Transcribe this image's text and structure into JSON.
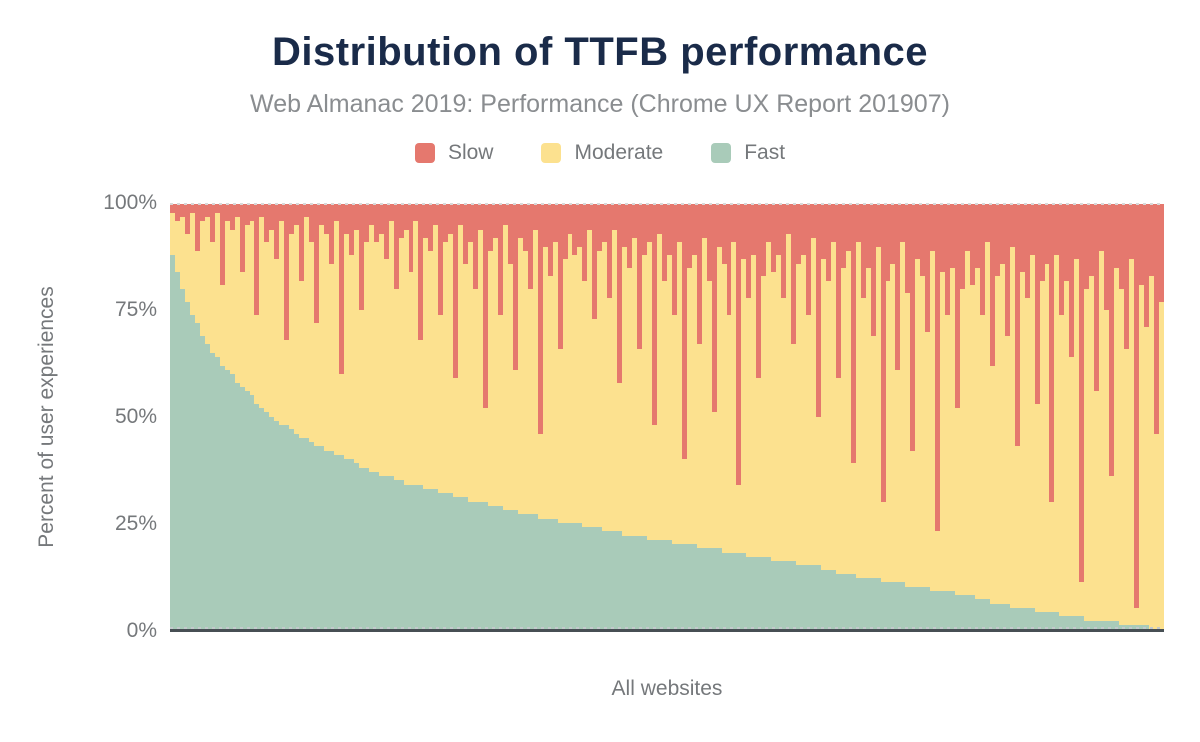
{
  "header": {
    "title": "Distribution of TTFB performance",
    "subtitle": "Web Almanac 2019: Performance (Chrome UX Report 201907)"
  },
  "legend": {
    "items": [
      {
        "label": "Slow",
        "color": "#e5786e"
      },
      {
        "label": "Moderate",
        "color": "#fce18f"
      },
      {
        "label": "Fast",
        "color": "#a9cbb9"
      }
    ]
  },
  "axes": {
    "y": {
      "title": "Percent of user experiences",
      "ticks_top_to_bottom": [
        "100%",
        "75%",
        "50%",
        "25%",
        "0%"
      ]
    },
    "x": {
      "title": "All websites"
    }
  },
  "theme": {
    "title_color": "#1a2b49",
    "subtitle_color": "#8a8d90",
    "text_color": "#75787b",
    "axis_line_color": "#474f54",
    "gridline_color": "#d8d8d8",
    "background": "#ffffff"
  },
  "chart_data": {
    "type": "bar",
    "stacked": true,
    "stack_unit": "percent",
    "stack_total": 100,
    "title": "Distribution of TTFB performance",
    "subtitle": "Web Almanac 2019: Performance (Chrome UX Report 201907)",
    "xlabel": "All websites",
    "ylabel": "Percent of user experiences",
    "ylim": [
      0,
      100
    ],
    "y_ticks": [
      "0%",
      "25%",
      "50%",
      "75%",
      "100%"
    ],
    "legend_position": "top",
    "grid": "dashed gridline at 100% and 0% only",
    "bar_count": 200,
    "note": "One thin bar per website, sorted by decreasing Fast share. Values estimated from pixels. Slow = 100 - Fast - Moderate.",
    "series": [
      {
        "name": "Fast",
        "color": "#a9cbb9",
        "values": [
          88,
          84,
          80,
          77,
          74,
          72,
          69,
          67,
          65,
          64,
          62,
          61,
          60,
          58,
          57,
          56,
          55,
          53,
          52,
          51,
          50,
          49,
          48,
          48,
          47,
          46,
          45,
          45,
          44,
          43,
          43,
          42,
          42,
          41,
          41,
          40,
          40,
          39,
          38,
          38,
          37,
          37,
          36,
          36,
          36,
          35,
          35,
          34,
          34,
          34,
          34,
          33,
          33,
          33,
          32,
          32,
          32,
          31,
          31,
          31,
          30,
          30,
          30,
          30,
          29,
          29,
          29,
          28,
          28,
          28,
          27,
          27,
          27,
          27,
          26,
          26,
          26,
          26,
          25,
          25,
          25,
          25,
          25,
          24,
          24,
          24,
          24,
          23,
          23,
          23,
          23,
          22,
          22,
          22,
          22,
          22,
          21,
          21,
          21,
          21,
          21,
          20,
          20,
          20,
          20,
          20,
          19,
          19,
          19,
          19,
          19,
          18,
          18,
          18,
          18,
          18,
          17,
          17,
          17,
          17,
          17,
          16,
          16,
          16,
          16,
          16,
          15,
          15,
          15,
          15,
          15,
          14,
          14,
          14,
          13,
          13,
          13,
          13,
          12,
          12,
          12,
          12,
          12,
          11,
          11,
          11,
          11,
          11,
          10,
          10,
          10,
          10,
          10,
          9,
          9,
          9,
          9,
          9,
          8,
          8,
          8,
          8,
          7,
          7,
          7,
          6,
          6,
          6,
          6,
          5,
          5,
          5,
          5,
          5,
          4,
          4,
          4,
          4,
          4,
          3,
          3,
          3,
          3,
          3,
          2,
          2,
          2,
          2,
          2,
          2,
          2,
          1,
          1,
          1,
          1,
          1,
          1,
          0,
          0,
          0
        ]
      },
      {
        "name": "Moderate",
        "color": "#fce18f",
        "values": [
          10,
          12,
          17,
          16,
          24,
          17,
          27,
          30,
          26,
          34,
          19,
          35,
          34,
          39,
          27,
          39,
          41,
          21,
          45,
          40,
          44,
          38,
          48,
          20,
          46,
          49,
          37,
          52,
          47,
          29,
          52,
          51,
          44,
          55,
          19,
          53,
          48,
          55,
          37,
          53,
          58,
          54,
          57,
          51,
          60,
          45,
          57,
          60,
          50,
          62,
          34,
          59,
          56,
          62,
          42,
          59,
          61,
          28,
          64,
          55,
          61,
          50,
          64,
          22,
          60,
          63,
          45,
          67,
          58,
          33,
          65,
          62,
          53,
          67,
          20,
          64,
          57,
          65,
          41,
          62,
          68,
          63,
          65,
          58,
          70,
          49,
          65,
          68,
          55,
          71,
          35,
          68,
          63,
          70,
          44,
          66,
          70,
          27,
          72,
          61,
          67,
          54,
          71,
          20,
          65,
          68,
          48,
          73,
          63,
          32,
          71,
          68,
          56,
          73,
          16,
          69,
          61,
          71,
          42,
          66,
          74,
          68,
          72,
          62,
          77,
          51,
          71,
          73,
          59,
          77,
          35,
          73,
          68,
          77,
          46,
          72,
          76,
          26,
          79,
          66,
          73,
          57,
          78,
          19,
          71,
          75,
          50,
          80,
          69,
          32,
          77,
          73,
          60,
          80,
          14,
          75,
          65,
          76,
          44,
          72,
          81,
          73,
          78,
          67,
          84,
          56,
          77,
          80,
          63,
          85,
          38,
          79,
          73,
          83,
          49,
          78,
          82,
          26,
          84,
          71,
          79,
          61,
          84,
          8,
          78,
          81,
          54,
          87,
          73,
          34,
          83,
          79,
          65,
          86,
          4,
          80,
          70,
          83,
          46,
          77
        ]
      },
      {
        "name": "Slow",
        "color": "#e5786e",
        "derived": "100 - Fast - Moderate"
      }
    ]
  }
}
